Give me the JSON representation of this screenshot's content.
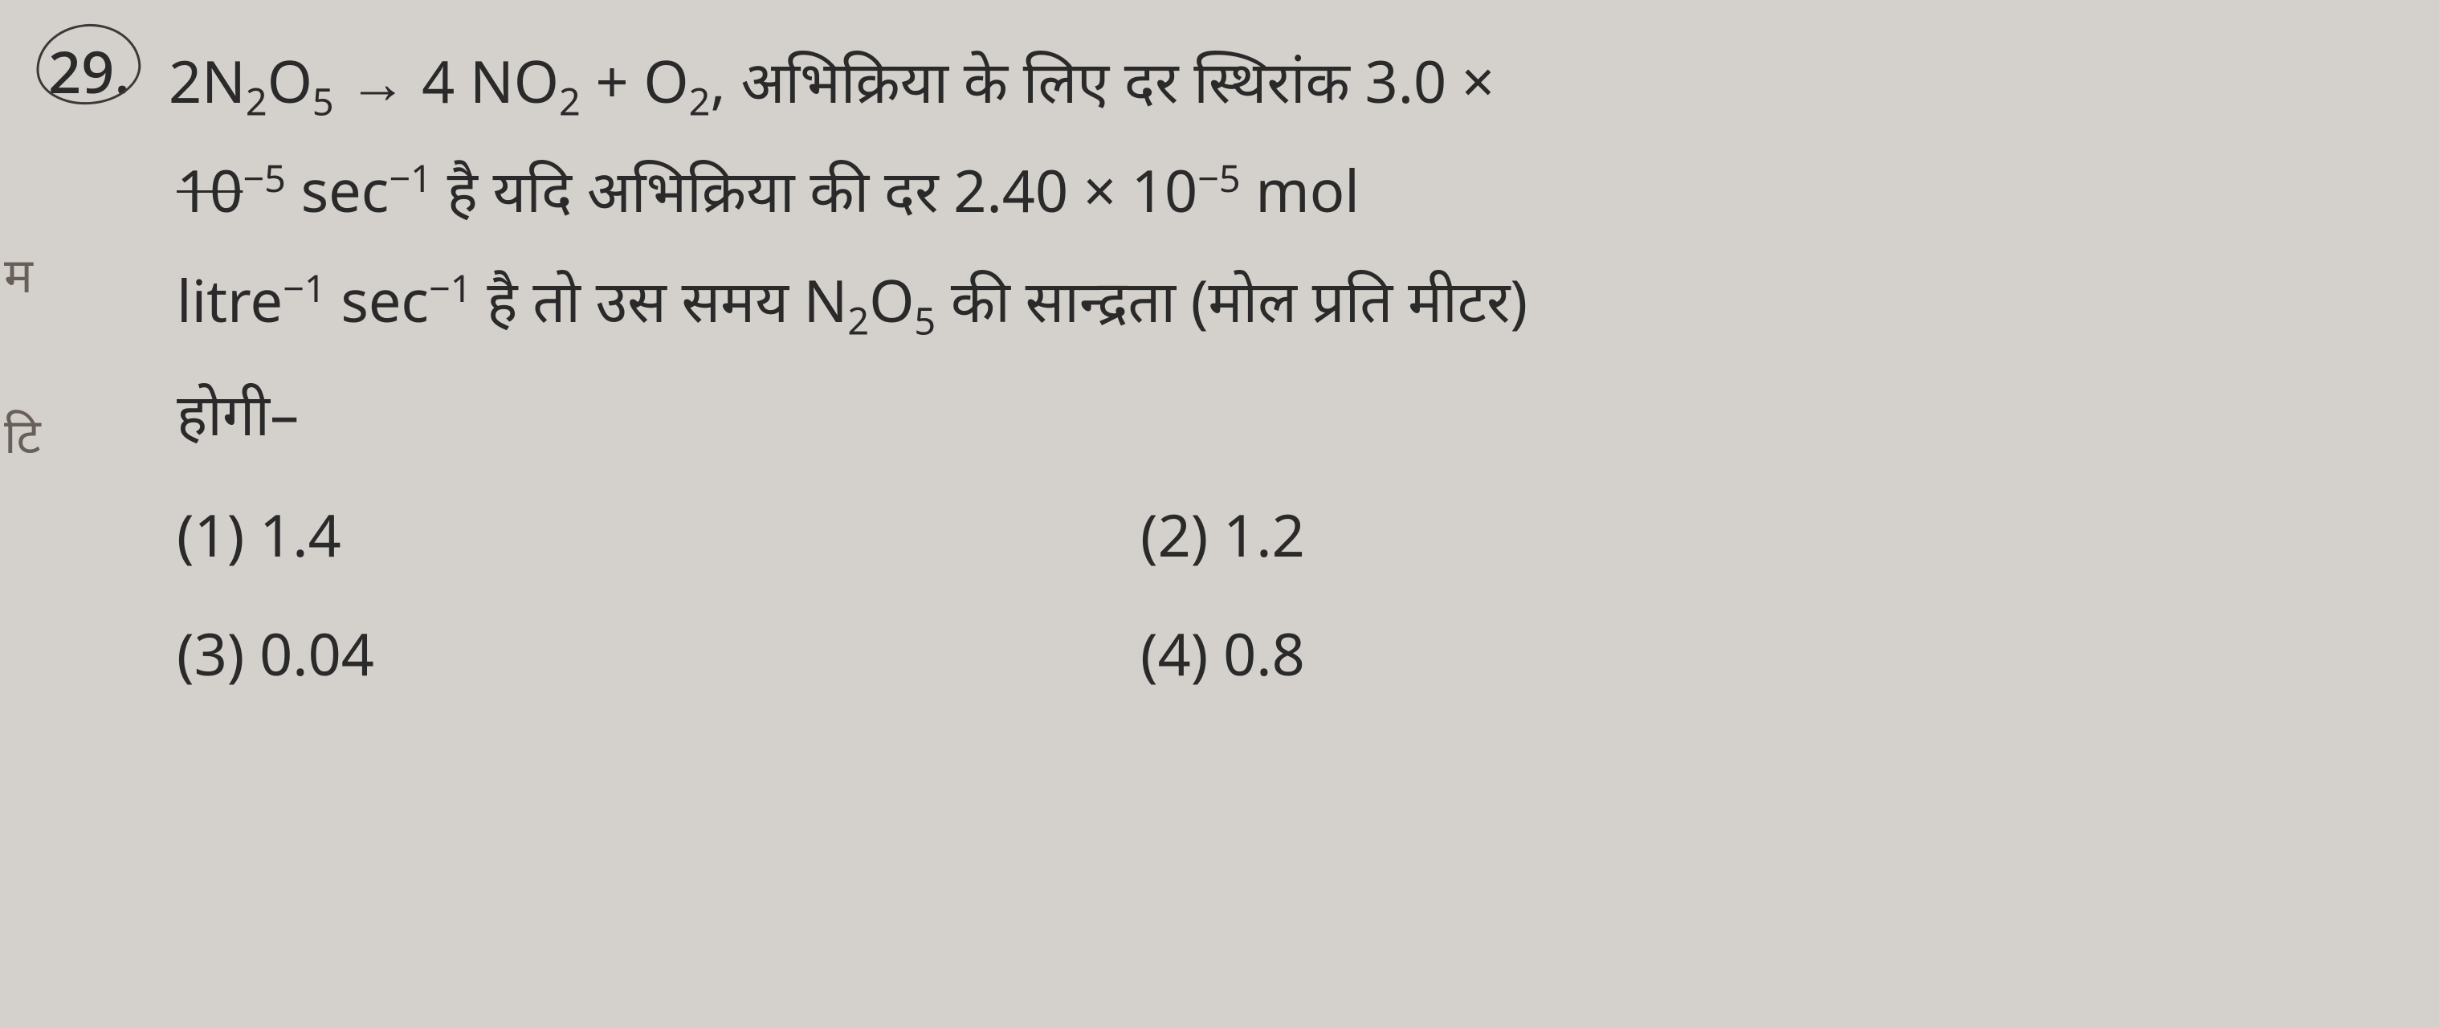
{
  "question": {
    "number": "29.",
    "line1_formula_prefix": "2N",
    "line1_sub1": "2",
    "line1_o": "O",
    "line1_sub2": "5",
    "line1_arrow": " → 4 NO",
    "line1_sub3": "2",
    "line1_plus": " + O",
    "line1_sub4": "2",
    "line1_text": ", अभिक्रिया के लिए दर स्थिरांक 3.0 ×",
    "line2_prefix": "10",
    "line2_sup1": "−5",
    "line2_sec": " sec",
    "line2_sup2": "−1",
    "line2_text": " है यदि अभिक्रिया की दर 2.40 × 10",
    "line2_sup3": "−5",
    "line2_mol": " mol",
    "line3_litre": "litre",
    "line3_sup1": "−1",
    "line3_sec": " sec",
    "line3_sup2": "−1",
    "line3_text1": " है तो उस समय N",
    "line3_sub1": "2",
    "line3_o": "O",
    "line3_sub2": "5",
    "line3_text2": " की सान्द्रता (मोल प्रति मीटर)",
    "line4": "होगी–"
  },
  "options": {
    "opt1": "(1) 1.4",
    "opt2": "(2) 1.2",
    "opt3": "(3) 0.04",
    "opt4": "(4) 0.8"
  },
  "margin_marks": {
    "m1": "म",
    "m2": "टि"
  },
  "colors": {
    "background": "#d4d0cc",
    "text": "#2a2a2a",
    "margin": "#686058"
  }
}
